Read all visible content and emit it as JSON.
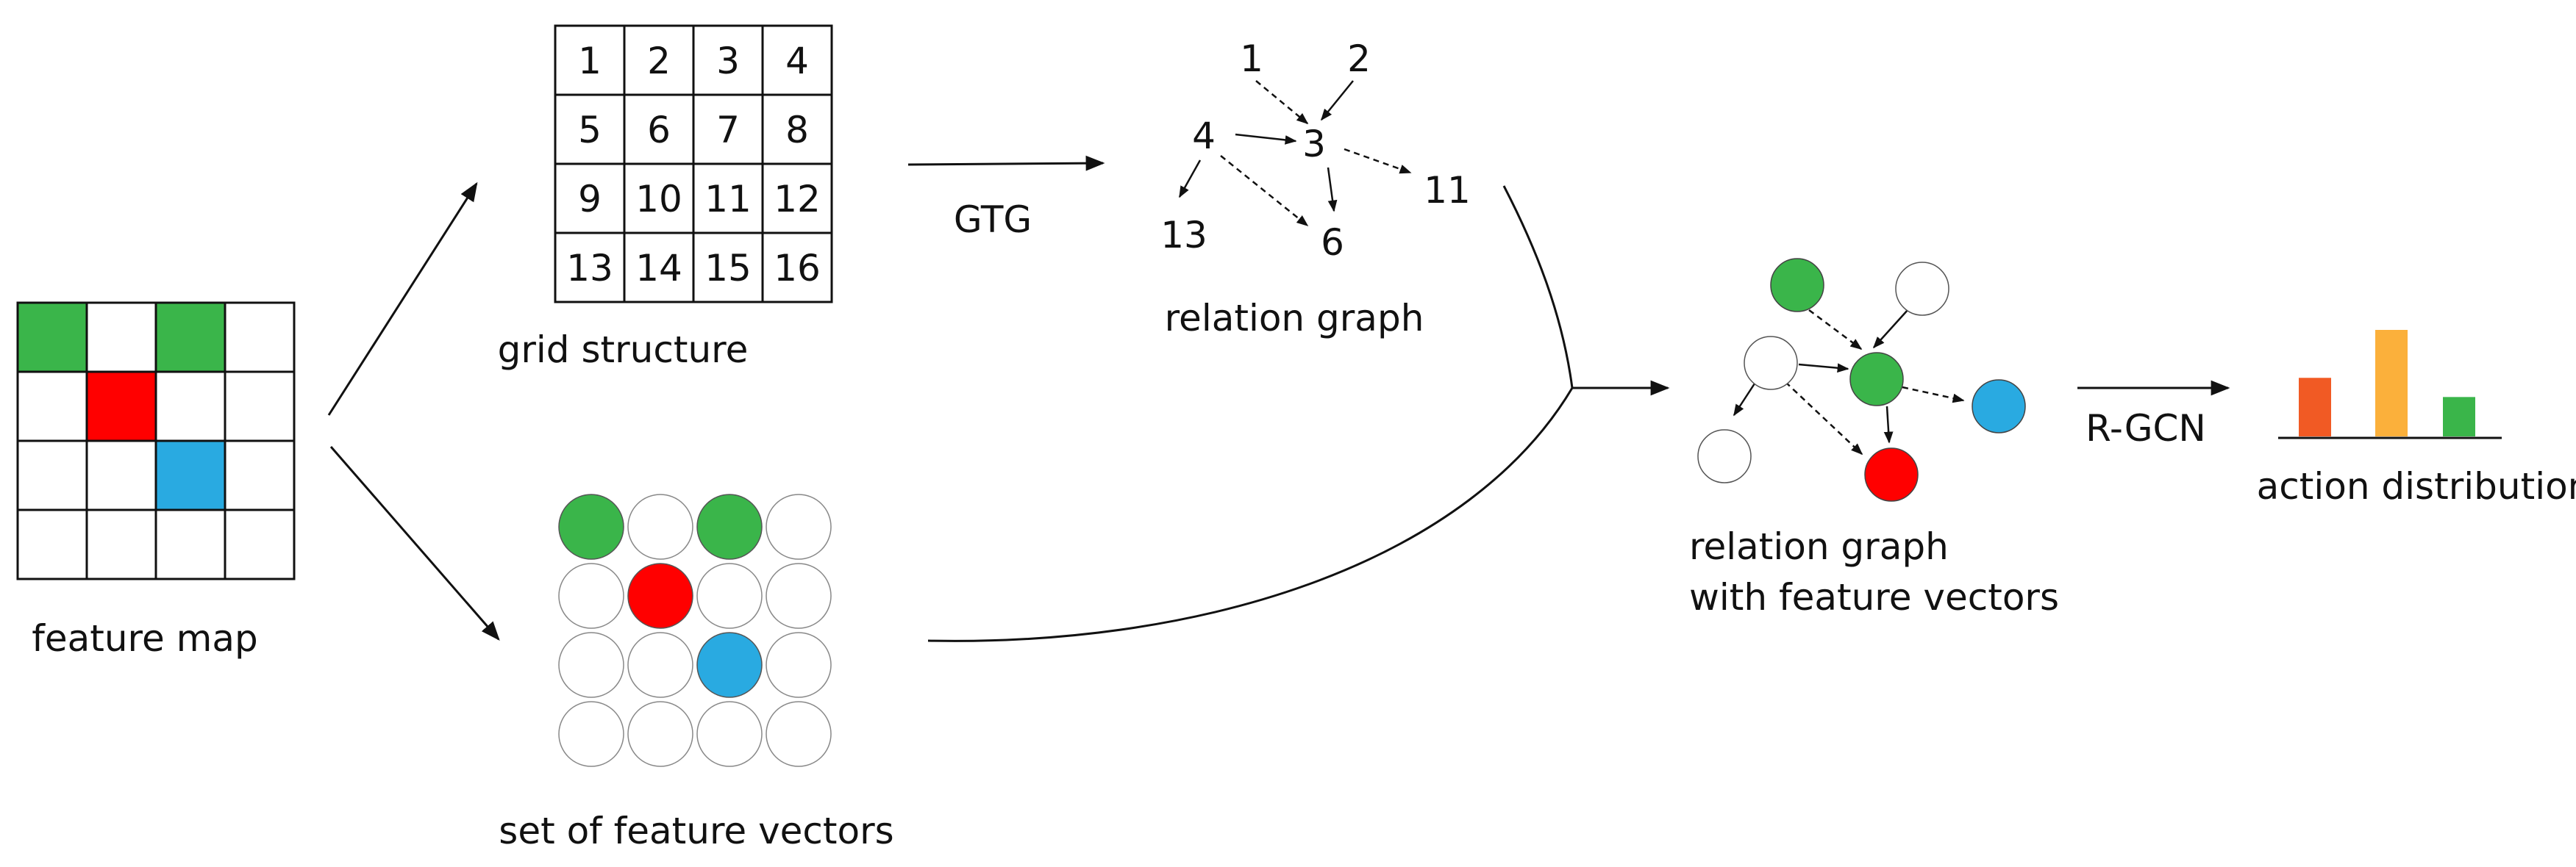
{
  "labels": {
    "feature_map": "feature map",
    "grid_structure": "grid structure",
    "set_of_feature_vectors": "set of feature vectors",
    "gtg": "GTG",
    "relation_graph": "relation graph",
    "relation_graph_features_line1": "relation graph",
    "relation_graph_features_line2": "with feature vectors",
    "rgcn": "R-GCN",
    "action_distribution": "action distribution"
  },
  "feature_map": {
    "rows": 4,
    "cols": 4,
    "cells": [
      [
        "green",
        "white",
        "green",
        "white"
      ],
      [
        "white",
        "red",
        "white",
        "white"
      ],
      [
        "white",
        "white",
        "blue",
        "white"
      ],
      [
        "white",
        "white",
        "white",
        "white"
      ]
    ]
  },
  "grid_structure": {
    "numbers": [
      [
        "1",
        "2",
        "3",
        "4"
      ],
      [
        "5",
        "6",
        "7",
        "8"
      ],
      [
        "9",
        "10",
        "11",
        "12"
      ],
      [
        "13",
        "14",
        "15",
        "16"
      ]
    ]
  },
  "relation_graph_nodes": [
    "1",
    "2",
    "4",
    "3",
    "11",
    "13",
    "6"
  ],
  "colors": {
    "green": "#3ab54a",
    "red": "#ff0000",
    "blue": "#29aae1",
    "white": "#ffffff",
    "orange": "#f15a24",
    "yellow": "#fbb03b"
  },
  "action_distribution": {
    "values": [
      0.55,
      1.0,
      0.37
    ],
    "colors": [
      "orange",
      "yellow",
      "green"
    ]
  }
}
